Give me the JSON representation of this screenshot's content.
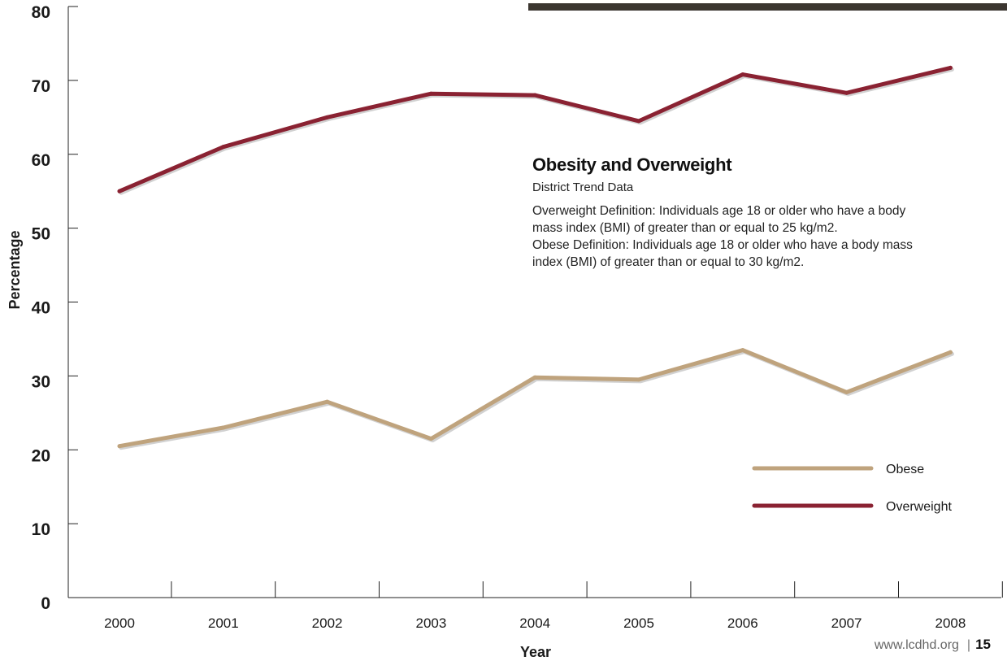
{
  "chart_data": {
    "type": "line",
    "title": "Obesity and Overweight",
    "subtitle": "District Trend Data",
    "xlabel": "Year",
    "ylabel": "Percentage",
    "categories": [
      "2000",
      "2001",
      "2002",
      "2003",
      "2004",
      "2005",
      "2006",
      "2007",
      "2008"
    ],
    "yticks": [
      "0",
      "10",
      "20",
      "30",
      "40",
      "50",
      "60",
      "70",
      "80"
    ],
    "ylim": [
      0,
      80
    ],
    "grid": false,
    "legend": "bottom-right",
    "series": [
      {
        "name": "Obese",
        "color": "#bfa37d",
        "values": [
          20.5,
          23.0,
          26.5,
          21.5,
          29.8,
          29.5,
          33.5,
          27.8,
          33.2
        ]
      },
      {
        "name": "Overweight",
        "color": "#8a2232",
        "values": [
          55.0,
          61.0,
          65.0,
          68.2,
          68.0,
          64.5,
          70.8,
          68.3,
          71.7
        ]
      }
    ]
  },
  "definitions": [
    "Overweight Definition: Individuals age 18 or older who have a body mass index (BMI) of greater than or equal to 25 kg/m2.",
    "Obese Definition: Individuals age 18 or older who have a body mass index (BMI) of greater than or equal to 30 kg/m2."
  ],
  "footer": {
    "url": "www.lcdhd.org",
    "separator": "|",
    "page": "15"
  }
}
